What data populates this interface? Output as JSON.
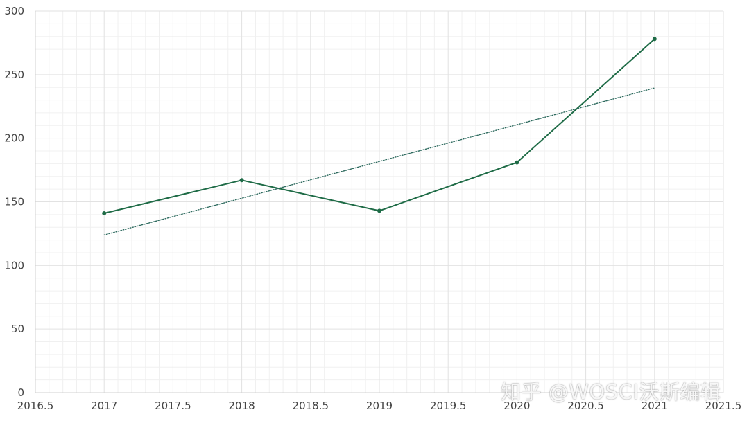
{
  "chart_data": {
    "type": "line",
    "title": "",
    "xlabel": "",
    "ylabel": "",
    "xlim": [
      2016.5,
      2021.5
    ],
    "ylim": [
      0,
      300
    ],
    "xticks": [
      2016.5,
      2017,
      2017.5,
      2018,
      2018.5,
      2019,
      2019.5,
      2020,
      2020.5,
      2021,
      2021.5
    ],
    "xtick_labels": [
      "2016.5",
      "2017",
      "2017.5",
      "2018",
      "2018.5",
      "2019",
      "2019.5",
      "2020",
      "2020.5",
      "2021",
      "2021.5"
    ],
    "yticks": [
      0,
      50,
      100,
      150,
      200,
      250,
      300
    ],
    "ytick_labels": [
      "0",
      "50",
      "100",
      "150",
      "200",
      "250",
      "300"
    ],
    "grid": true,
    "minor_grid": true,
    "legend": "none",
    "series": [
      {
        "style": "solid-with-markers",
        "color": "#1e6b46",
        "x": [
          2017,
          2018,
          2019,
          2020,
          2021
        ],
        "y": [
          141,
          167,
          143,
          181,
          278
        ]
      },
      {
        "style": "dotted-trendline",
        "color": "#2d6a5e",
        "x": [
          2017,
          2021
        ],
        "y": [
          124,
          239.5
        ]
      }
    ]
  },
  "watermark": {
    "text": "知乎 @WOSCI沃斯编辑"
  },
  "colors": {
    "major_grid": "#e2e2e2",
    "minor_grid": "#f0f0f0",
    "axis": "#d0d0d0",
    "tick_text": "#444444"
  }
}
